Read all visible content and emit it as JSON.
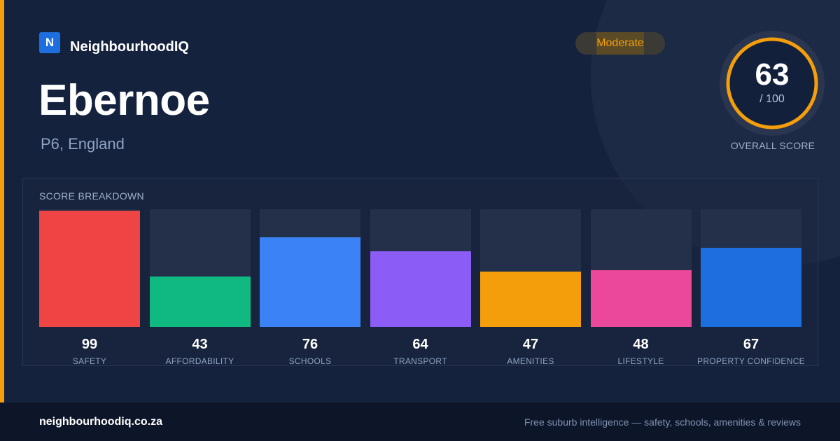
{
  "brand": {
    "logo_letter": "N",
    "name": "NeighbourhoodIQ"
  },
  "suburb": {
    "name": "Ebernoe",
    "location": "P6, England"
  },
  "rating_badge": "Moderate",
  "overall": {
    "score": "63",
    "max": "/ 100",
    "label": "OVERALL SCORE",
    "fraction": 0.63
  },
  "breakdown": {
    "title": "SCORE BREAKDOWN",
    "categories": [
      {
        "label": "SAFETY",
        "value": "99",
        "score": 99,
        "color": "#ef4444"
      },
      {
        "label": "AFFORDABILITY",
        "value": "43",
        "score": 43,
        "color": "#10b981"
      },
      {
        "label": "SCHOOLS",
        "value": "76",
        "score": 76,
        "color": "#3b82f6"
      },
      {
        "label": "TRANSPORT",
        "value": "64",
        "score": 64,
        "color": "#8b5cf6"
      },
      {
        "label": "AMENITIES",
        "value": "47",
        "score": 47,
        "color": "#f59e0b"
      },
      {
        "label": "LIFESTYLE",
        "value": "48",
        "score": 48,
        "color": "#ec4899"
      },
      {
        "label": "PROPERTY CONFIDENCE",
        "value": "67",
        "score": 67,
        "color": "#1d6fe0"
      }
    ]
  },
  "footer": {
    "domain": "neighbourhoodiq.co.za",
    "tagline": "Free suburb intelligence — safety, schools, amenities & reviews"
  },
  "colors": {
    "accent": "#f59e0b",
    "brand": "#1d6fe0",
    "background": "#15223d"
  }
}
